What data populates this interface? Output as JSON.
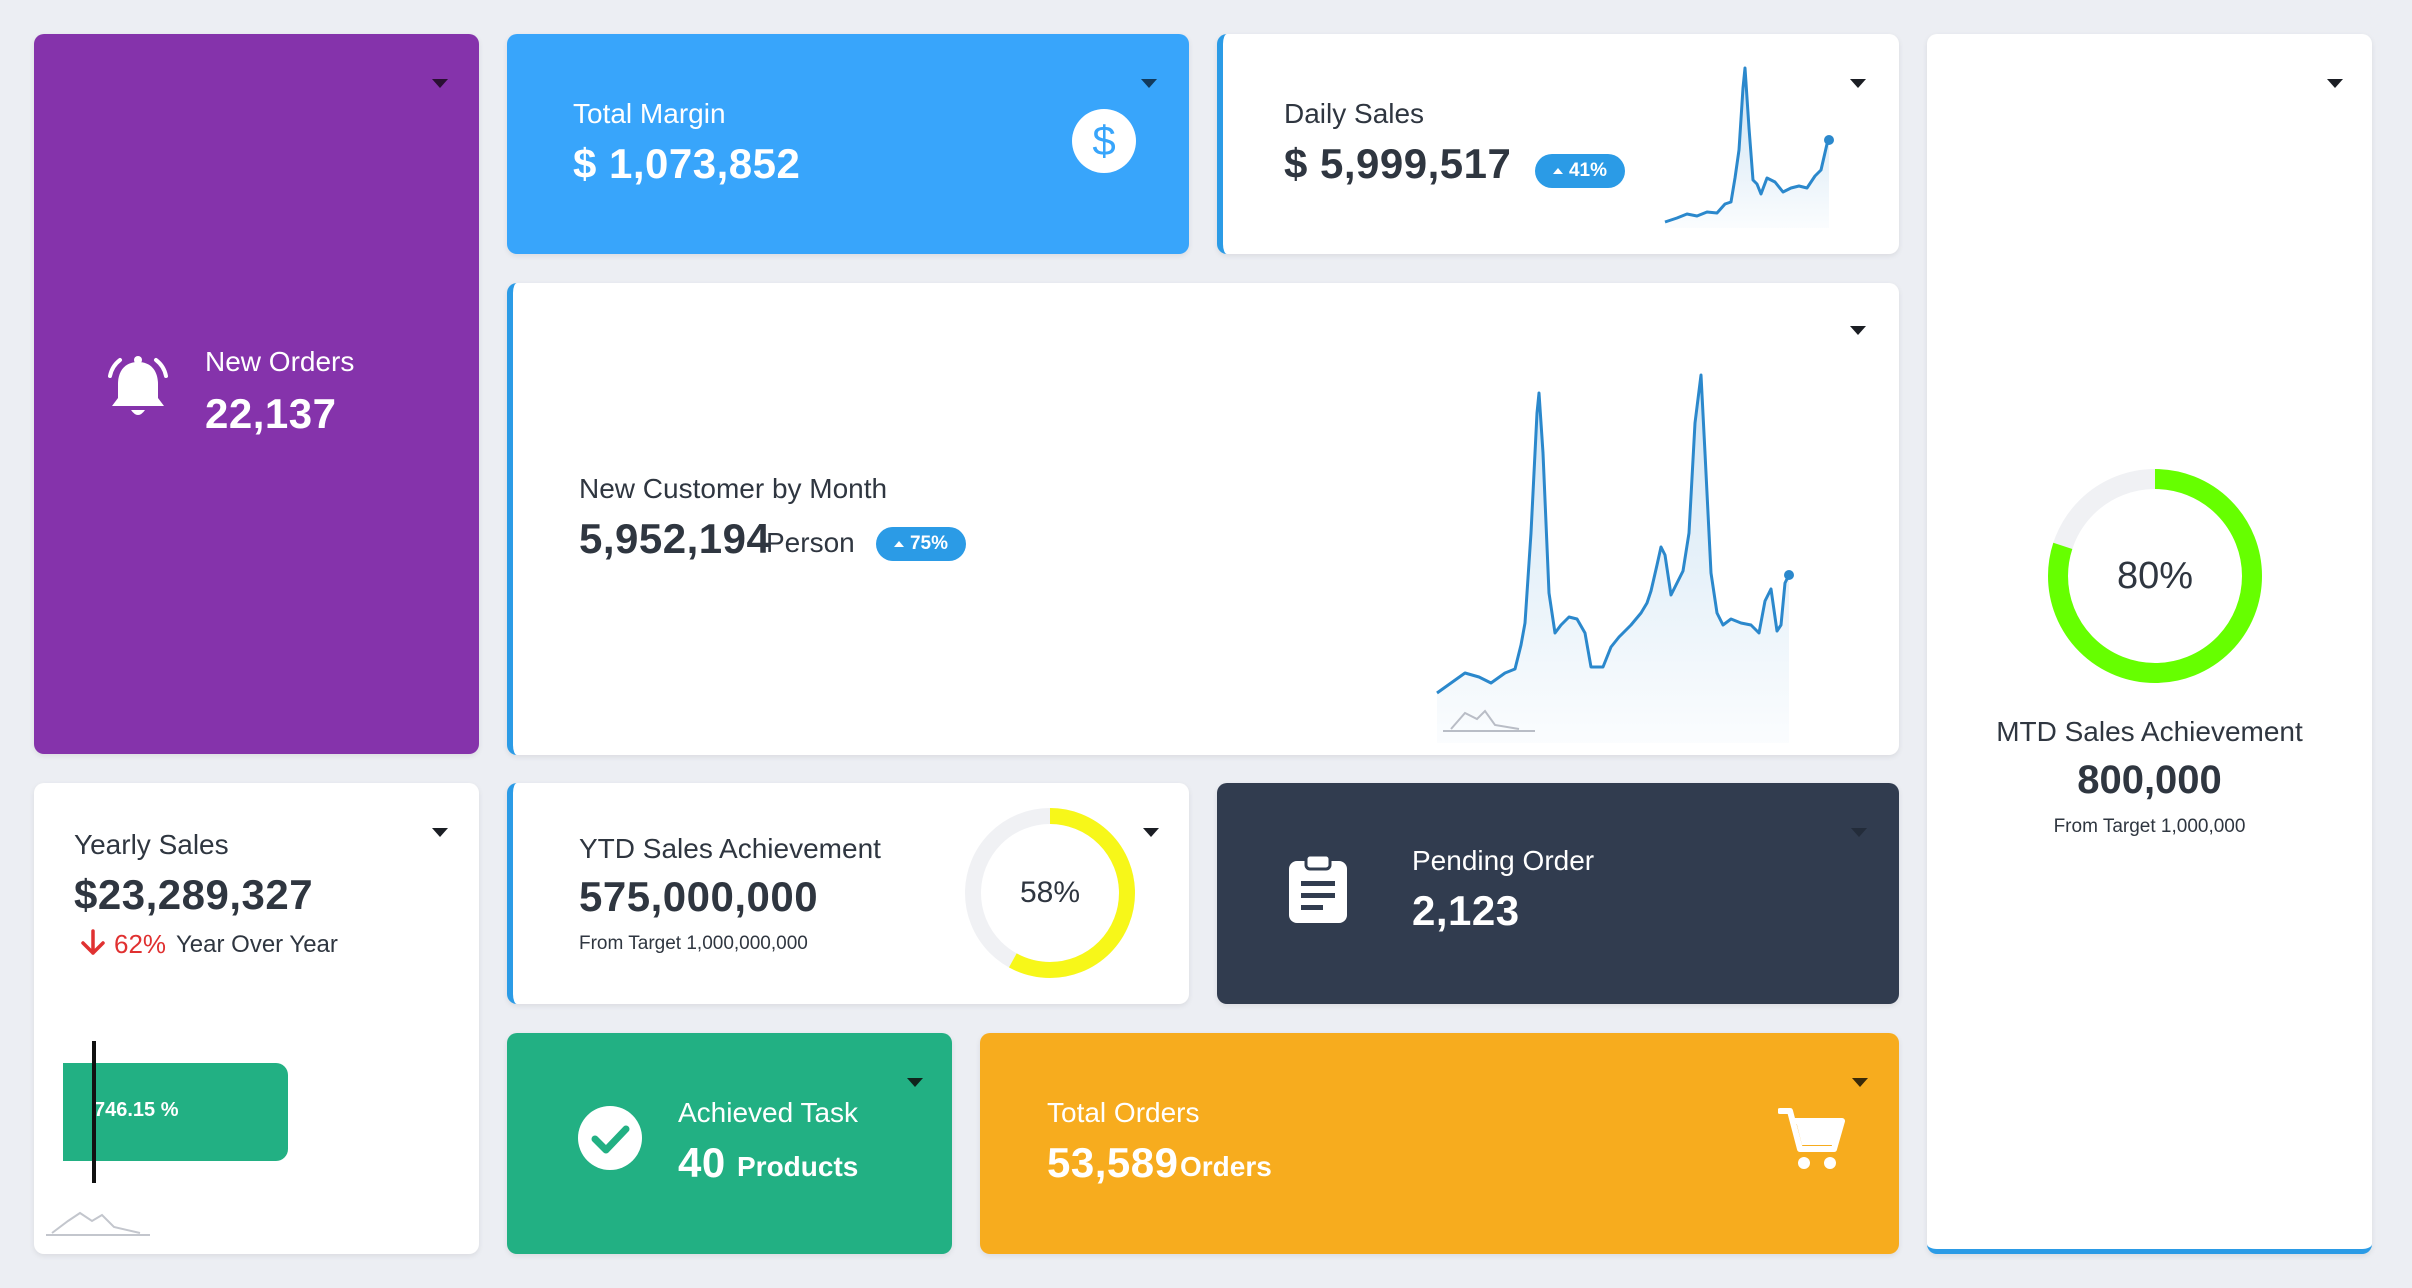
{
  "new_orders": {
    "label": "New Orders",
    "value": "22,137",
    "color": "#8533ab"
  },
  "total_margin": {
    "label": "Total Margin",
    "value": "$ 1,073,852",
    "color": "#38a5fb"
  },
  "daily_sales": {
    "label": "Daily Sales",
    "value": "$ 5,999,517",
    "badge": "41%"
  },
  "new_customer": {
    "label": "New Customer by Month",
    "value": "5,952,194",
    "unit": "Person",
    "badge": "75%"
  },
  "mtd": {
    "percent": 80,
    "percent_label": "80%",
    "label": "MTD Sales Achievement",
    "value": "800,000",
    "target": "From Target 1,000,000",
    "ring_color": "#66ff00"
  },
  "yearly_sales": {
    "label": "Yearly Sales",
    "value": "$23,289,327",
    "change": "62%",
    "change_label": "Year Over Year",
    "bar_label": "746.15 %",
    "bar_color": "#22b083"
  },
  "ytd": {
    "label": "YTD Sales Achievement",
    "value": "575,000,000",
    "target": "From Target 1,000,000,000",
    "percent": 58,
    "percent_label": "58%",
    "ring_color": "#f7f719"
  },
  "pending_order": {
    "label": "Pending Order",
    "value": "2,123",
    "color": "#313c4f"
  },
  "achieved_task": {
    "label": "Achieved Task",
    "value": "40",
    "unit": "Products",
    "color": "#22b083"
  },
  "total_orders": {
    "label": "Total Orders",
    "value": "53,589",
    "unit": "Orders",
    "color": "#f7ac1e"
  },
  "icons": [
    "bell-icon",
    "dollar-circle-icon",
    "clipboard-icon",
    "check-circle-icon",
    "cart-icon",
    "arrow-down-icon",
    "mini-sparkline-icon"
  ]
}
